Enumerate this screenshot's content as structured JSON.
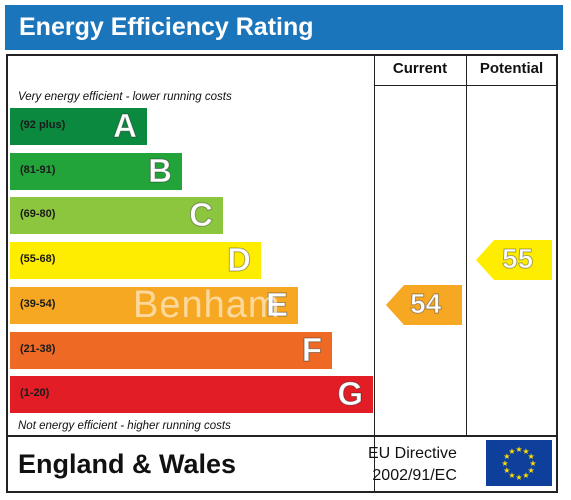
{
  "title": "Energy Efficiency Rating",
  "columns": {
    "current": "Current",
    "potential": "Potential"
  },
  "notes": {
    "top": "Very energy efficient - lower running costs",
    "bottom": "Not energy efficient - higher running costs"
  },
  "bands": [
    {
      "range": "(92 plus)",
      "letter": "A",
      "color": "#0b8a3f"
    },
    {
      "range": "(81-91)",
      "letter": "B",
      "color": "#22a43a"
    },
    {
      "range": "(69-80)",
      "letter": "C",
      "color": "#8cc63f"
    },
    {
      "range": "(55-68)",
      "letter": "D",
      "color": "#ffed00"
    },
    {
      "range": "(39-54)",
      "letter": "E",
      "color": "#f7a823"
    },
    {
      "range": "(21-38)",
      "letter": "F",
      "color": "#ee6a24"
    },
    {
      "range": "(1-20)",
      "letter": "G",
      "color": "#e21d26"
    }
  ],
  "ratings": {
    "current": {
      "value": "54",
      "band": "E",
      "color": "#f7a823"
    },
    "potential": {
      "value": "55",
      "band": "D",
      "color": "#ffed00"
    }
  },
  "footer": {
    "region": "England & Wales",
    "directive_line1": "EU Directive",
    "directive_line2": "2002/91/EC"
  },
  "flag_icon": "eu-flag-icon",
  "watermark": "Benham"
}
